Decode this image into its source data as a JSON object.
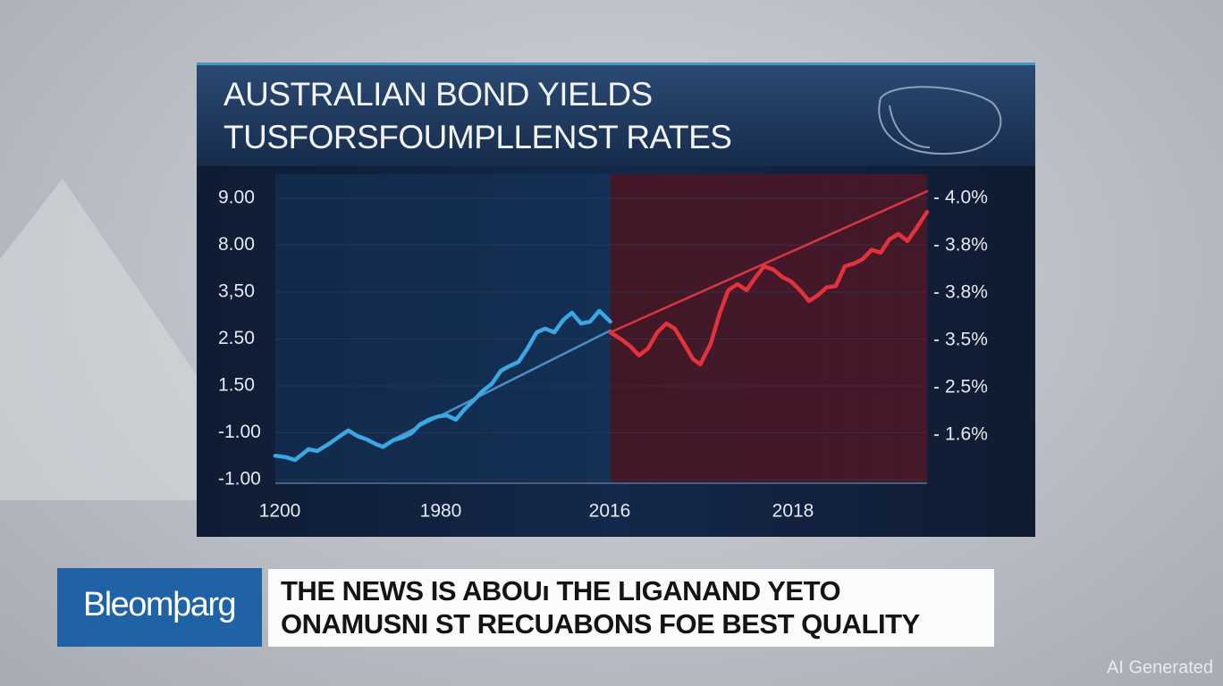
{
  "chart_data": {
    "type": "line",
    "title": "AUSTRALIAN BOND YIELDS",
    "subtitle": "TUSFORSFOUMPLLENST RATES",
    "ytick_labels": [
      "9.00",
      "8.00",
      "3,50",
      "2.50",
      "1.50",
      "-1.00",
      "-1.00"
    ],
    "y2tick_labels": [
      "4.0%",
      "3.8%",
      "3.8%",
      "3.5%",
      "2.5%",
      "1.6%"
    ],
    "xtick_labels": [
      "1200",
      "1980",
      "2016",
      "2018"
    ],
    "xlim": [
      0,
      100
    ],
    "ylim": [
      0,
      6
    ],
    "grid": true,
    "series": [
      {
        "color": "#3ba8e4",
        "x": [
          0,
          1.6,
          3.0,
          5.1,
          6.4,
          8.2,
          9.6,
          11.2,
          12.6,
          14.0,
          15.4,
          16.5,
          18.1,
          19.5,
          20.9,
          22.2,
          23.6,
          25.0,
          26.3,
          27.7,
          29.1,
          30.5,
          31.8,
          33.2,
          34.6,
          35.9,
          37.3,
          38.7,
          40.1,
          41.4,
          42.8,
          44.2,
          45.5,
          46.9,
          48.3,
          49.7,
          51.4
        ],
        "values": [
          0.51,
          0.48,
          0.42,
          0.65,
          0.61,
          0.76,
          0.9,
          1.05,
          0.93,
          0.86,
          0.76,
          0.7,
          0.84,
          0.9,
          0.99,
          1.18,
          1.28,
          1.35,
          1.37,
          1.28,
          1.51,
          1.7,
          1.89,
          2.04,
          2.32,
          2.42,
          2.51,
          2.8,
          3.14,
          3.22,
          3.14,
          3.41,
          3.56,
          3.33,
          3.37,
          3.6,
          3.37
        ]
      },
      {
        "color": "#e2323b",
        "x": [
          51.4,
          53.1,
          54.5,
          55.8,
          57.2,
          58.6,
          60.0,
          61.3,
          62.7,
          64.1,
          65.2,
          66.8,
          68.2,
          69.5,
          70.9,
          72.3,
          73.7,
          75.0,
          76.4,
          77.8,
          79.1,
          80.5,
          81.9,
          83.3,
          84.6,
          86.0,
          87.4,
          88.8,
          90.1,
          91.5,
          92.9,
          94.2,
          95.6,
          97.0,
          98.4,
          100
        ],
        "values": [
          3.14,
          2.99,
          2.84,
          2.65,
          2.8,
          3.14,
          3.33,
          3.22,
          2.9,
          2.57,
          2.46,
          2.9,
          3.56,
          4.04,
          4.17,
          4.04,
          4.32,
          4.55,
          4.48,
          4.32,
          4.23,
          4.04,
          3.81,
          3.94,
          4.1,
          4.13,
          4.55,
          4.61,
          4.7,
          4.9,
          4.84,
          5.12,
          5.24,
          5.09,
          5.37,
          5.71
        ]
      },
      {
        "color": "#4b8fc4",
        "x": [
          18.1,
          51.4
        ],
        "values": [
          0.86,
          3.18
        ]
      },
      {
        "color": "#d6383f",
        "x": [
          51.4,
          100
        ],
        "values": [
          3.14,
          6.15
        ]
      }
    ]
  },
  "banner": {
    "logo": "Bleomþarg",
    "headline": [
      "THE NEWS IS ABOUı THE LIGANAND YETO",
      "ONAMUSNI ST RECUABONS FOE BEST QUALITY"
    ]
  },
  "watermark": "AI Generated"
}
